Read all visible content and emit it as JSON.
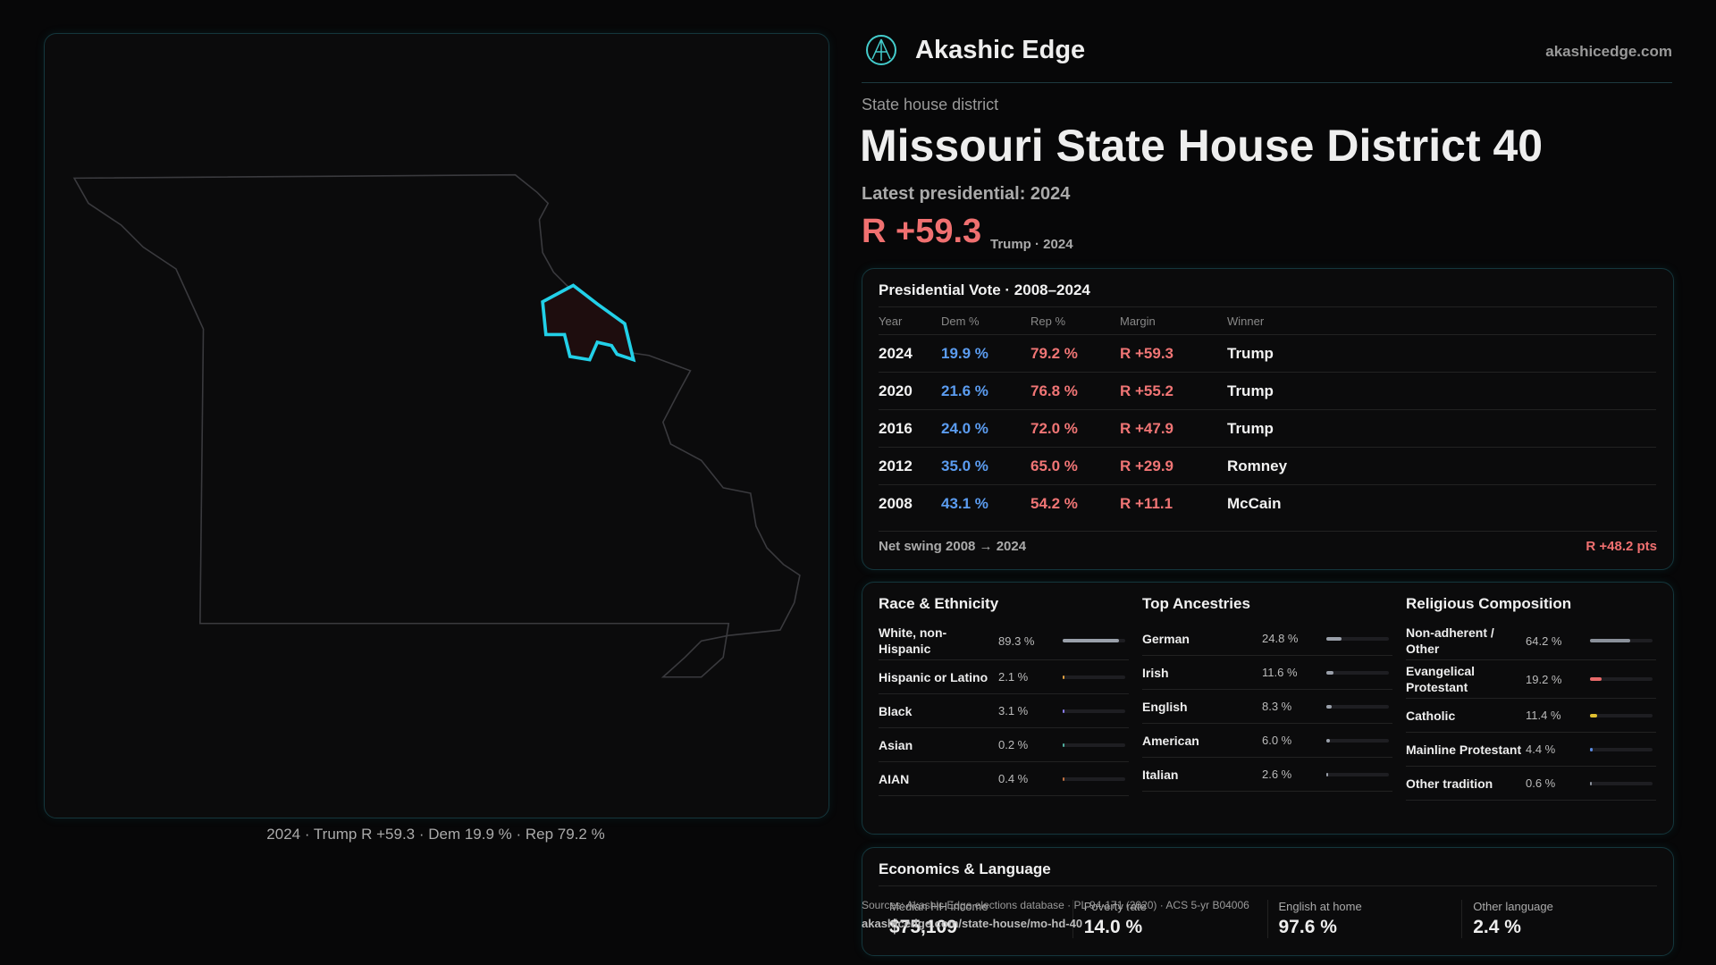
{
  "header": {
    "brand": "Akashic Edge",
    "site": "akashicedge.com"
  },
  "district": {
    "kind": "State house district",
    "title": "Missouri State House District 40",
    "latest": "Latest presidential: 2024",
    "margin": "R +59.3",
    "margin_note": "Trump · 2024"
  },
  "map": {
    "caption": "2024 · Trump R +59.3 · Dem 19.9 % · Rep 79.2 %"
  },
  "vote_table": {
    "title": "Presidential Vote · 2008–2024",
    "columns": [
      "Year",
      "Dem %",
      "Rep %",
      "Margin",
      "Winner"
    ],
    "rows": [
      [
        "2024",
        "19.9 %",
        "79.2 %",
        "R +59.3",
        "Trump"
      ],
      [
        "2020",
        "21.6 %",
        "76.8 %",
        "R +55.2",
        "Trump"
      ],
      [
        "2016",
        "24.0 %",
        "72.0 %",
        "R +47.9",
        "Trump"
      ],
      [
        "2012",
        "35.0 %",
        "65.0 %",
        "R +29.9",
        "Romney"
      ],
      [
        "2008",
        "43.1 %",
        "54.2 %",
        "R +11.1",
        "McCain"
      ]
    ],
    "swing_label": "Net swing 2008 → 2024",
    "swing_value": "R +48.2 pts"
  },
  "race": {
    "title": "Race & Ethnicity",
    "rows": [
      {
        "name": "White, non-Hispanic",
        "value": 89.3,
        "label": "89.3 %",
        "color": "#9aa0aa"
      },
      {
        "name": "Hispanic or Latino",
        "value": 2.1,
        "label": "2.1 %",
        "color": "#e0a040"
      },
      {
        "name": "Black",
        "value": 3.1,
        "label": "3.1 %",
        "color": "#8a7cf0"
      },
      {
        "name": "Asian",
        "value": 0.2,
        "label": "0.2 %",
        "color": "#50b0a0"
      },
      {
        "name": "AIAN",
        "value": 0.4,
        "label": "0.4 %",
        "color": "#c07040"
      }
    ]
  },
  "ancestry": {
    "title": "Top Ancestries",
    "rows": [
      {
        "name": "German",
        "value": 24.8,
        "label": "24.8 %",
        "color": "#9aa0aa"
      },
      {
        "name": "Irish",
        "value": 11.6,
        "label": "11.6 %",
        "color": "#9aa0aa"
      },
      {
        "name": "English",
        "value": 8.3,
        "label": "8.3 %",
        "color": "#9aa0aa"
      },
      {
        "name": "American",
        "value": 6.0,
        "label": "6.0 %",
        "color": "#9aa0aa"
      },
      {
        "name": "Italian",
        "value": 2.6,
        "label": "2.6 %",
        "color": "#9aa0aa"
      }
    ]
  },
  "religion": {
    "title": "Religious Composition",
    "rows": [
      {
        "name": "Non-adherent / Other",
        "value": 64.2,
        "label": "64.2 %",
        "color": "#8a909a"
      },
      {
        "name": "Evangelical Protestant",
        "value": 19.2,
        "label": "19.2 %",
        "color": "#e86a6a"
      },
      {
        "name": "Catholic",
        "value": 11.4,
        "label": "11.4 %",
        "color": "#e0c030"
      },
      {
        "name": "Mainline Protestant",
        "value": 4.4,
        "label": "4.4 %",
        "color": "#5a8ae0"
      },
      {
        "name": "Other tradition",
        "value": 0.6,
        "label": "0.6 %",
        "color": "#8a909a"
      }
    ]
  },
  "economics": {
    "title": "Economics & Language",
    "items": [
      {
        "label": "Median HH income",
        "value": "$75,109"
      },
      {
        "label": "Poverty rate",
        "value": "14.0 %"
      },
      {
        "label": "English at home",
        "value": "97.6 %"
      },
      {
        "label": "Other language",
        "value": "2.4 %"
      }
    ]
  },
  "footer": {
    "sources": "Sources: Akashic Edge elections database · PL 94-171 (2020) · ACS 5-yr B04006",
    "url": "akashicedge.com/state-house/mo-hd-40"
  }
}
